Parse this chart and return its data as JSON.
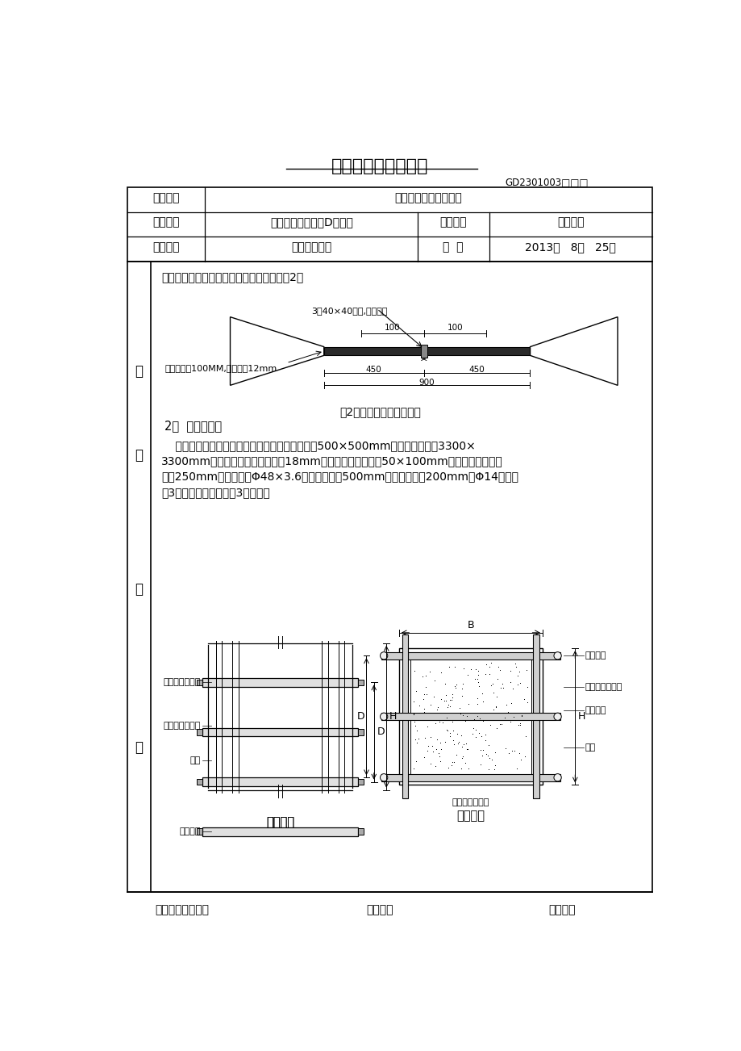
{
  "title": "模板支设技术交底卡",
  "code": "GD2301003□□□",
  "row1_col1": "施工单位",
  "row1_col2": "中铁建设集团有限公司",
  "row2_col1": "工程名称",
  "row2_col2": "美林湖水镇一标段D区工程",
  "row2_col3": "分部工程",
  "row2_col4": "模板工程",
  "row3_col1": "交底部位",
  "row3_col2": "地下室及主体",
  "row3_col3": "日  期",
  "row3_col4": "2013年   8月   25日",
  "content_text1": "地下室外墙对拉螺杆采用止水螺杆，如下图2：",
  "fig2_label": "3厚40×40钢片,双面满焊",
  "label_threads": "两端套丝各100MM,螺杆直径12mm",
  "fig2_caption": "图2地下室侧墙用止水螺杆",
  "section2_title": "2、  独立柱模板",
  "body_line1": "    本工程独立柱处于地下室公共部分，柱子底部为500×500mm的方柱，顶部为3300×",
  "body_line2": "3300mm的柱帽，独立柱模板采用18mm厚木胶合板做模板，50×100mm的方木做次龙骨，",
  "body_line3": "间距250mm；柱箍采用Φ48×3.6双钢管，间距500mm，第一道距地200mm；Φ14螺栓配",
  "body_line4": "置3形卡加固，用钢管做3道斜撑。",
  "side_jiao": "交",
  "side_di": "底",
  "side_nei": "内",
  "side_rong": "容",
  "elev_label1": "柱箍（圆钢管）",
  "elev_label2": "竖楞（圆钢管）",
  "elev_label3": "面板",
  "elev_label4": "对拉螺栓",
  "cross_label1": "对拉螺栓",
  "cross_label2": "柱箍（圆钢管）",
  "cross_label3": "对拉螺栓",
  "cross_label4": "面板",
  "cross_label5": "竖楞（圆钢管）",
  "cross_label_B": "B",
  "cross_label_D": "D",
  "cross_label_H": "H",
  "caption_elev": "柱立面图",
  "caption_cross": "柱剖面图",
  "footer_left": "专业技术负责人：",
  "footer_mid": "交底人：",
  "footer_right": "接受人："
}
